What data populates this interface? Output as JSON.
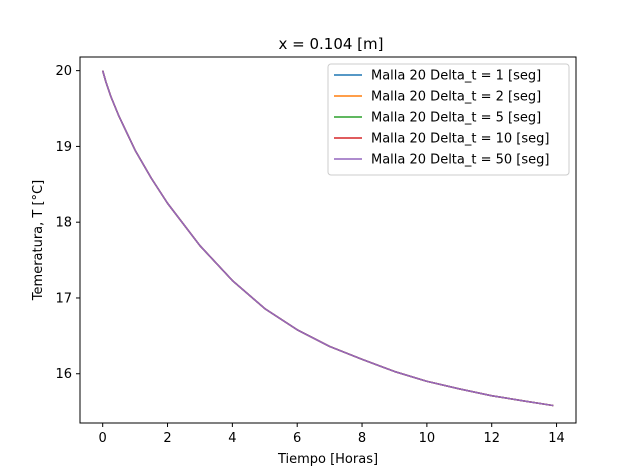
{
  "chart_data": {
    "type": "line",
    "title": "x = 0.104 [m]",
    "xlabel": "Tiempo  [Horas]",
    "ylabel": "Temeratura, T  [°C]",
    "xlim": [
      -0.7,
      14.6
    ],
    "ylim": [
      15.35,
      20.18
    ],
    "xticks": [
      0,
      2,
      4,
      6,
      8,
      10,
      12,
      14
    ],
    "yticks": [
      16,
      17,
      18,
      19,
      20
    ],
    "xtick_labels": [
      "0",
      "2",
      "4",
      "6",
      "8",
      "10",
      "12",
      "14"
    ],
    "ytick_labels": [
      "16",
      "17",
      "18",
      "19",
      "20"
    ],
    "grid": false,
    "legend_position": "top-right",
    "x": [
      0,
      0.1,
      0.25,
      0.5,
      1,
      1.5,
      2,
      3,
      4,
      5,
      6,
      7,
      8,
      9,
      10,
      11,
      12,
      13,
      13.9
    ],
    "series": [
      {
        "name": "Malla 20 Delta_t = 1 [seg]",
        "color": "#1f77b4",
        "values": [
          20.0,
          19.85,
          19.66,
          19.4,
          18.95,
          18.58,
          18.25,
          17.69,
          17.23,
          16.86,
          16.58,
          16.36,
          16.19,
          16.03,
          15.9,
          15.8,
          15.71,
          15.64,
          15.58
        ]
      },
      {
        "name": "Malla 20 Delta_t = 2 [seg]",
        "color": "#ff7f0e",
        "values": [
          20.0,
          19.85,
          19.66,
          19.4,
          18.95,
          18.58,
          18.25,
          17.69,
          17.23,
          16.86,
          16.58,
          16.36,
          16.19,
          16.03,
          15.9,
          15.8,
          15.71,
          15.64,
          15.58
        ]
      },
      {
        "name": "Malla 20 Delta_t = 5 [seg]",
        "color": "#2ca02c",
        "values": [
          20.0,
          19.85,
          19.66,
          19.4,
          18.95,
          18.58,
          18.25,
          17.69,
          17.23,
          16.86,
          16.58,
          16.36,
          16.19,
          16.03,
          15.9,
          15.8,
          15.71,
          15.64,
          15.58
        ]
      },
      {
        "name": "Malla 20 Delta_t = 10 [seg]",
        "color": "#d62728",
        "values": [
          20.0,
          19.85,
          19.66,
          19.4,
          18.95,
          18.58,
          18.25,
          17.69,
          17.23,
          16.86,
          16.58,
          16.36,
          16.19,
          16.03,
          15.9,
          15.8,
          15.71,
          15.64,
          15.58
        ]
      },
      {
        "name": "Malla 20 Delta_t = 50 [seg]",
        "color": "#9467bd",
        "values": [
          20.0,
          19.85,
          19.66,
          19.4,
          18.95,
          18.58,
          18.25,
          17.69,
          17.23,
          16.86,
          16.58,
          16.36,
          16.19,
          16.03,
          15.9,
          15.8,
          15.71,
          15.64,
          15.58
        ]
      }
    ]
  }
}
